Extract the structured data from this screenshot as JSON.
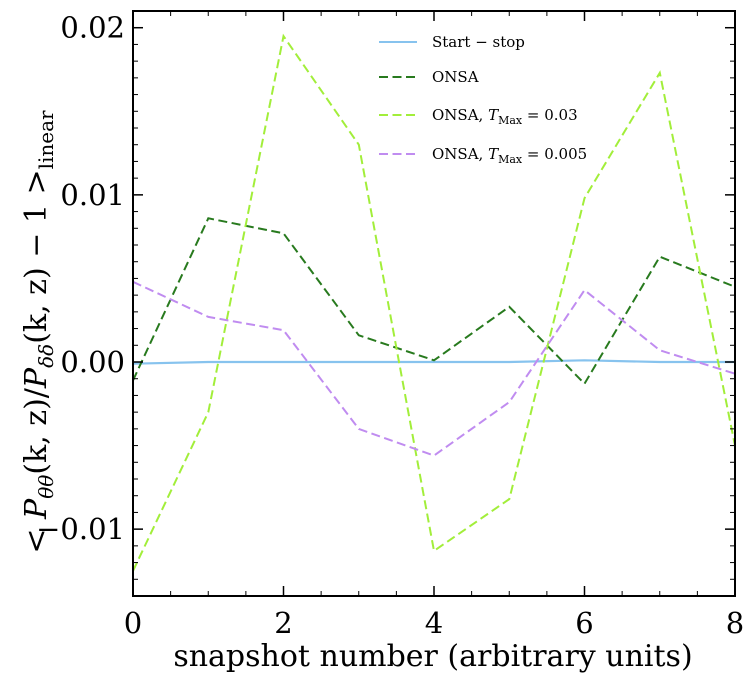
{
  "chart_data": {
    "type": "line",
    "title": "",
    "xlabel": "snapshot number (arbitrary units)",
    "ylabel": "< P_θθ(k,z)/P_δδ(k,z) − 1 >_linear",
    "ylabel_parts": {
      "open": "< ",
      "P1": "P",
      "sub1": "θθ",
      "mid1": "(k, z)/",
      "P2": "P",
      "sub2": "δδ",
      "mid2": "(k, z) − 1 >",
      "sub3": "linear"
    },
    "xlim": [
      0,
      8
    ],
    "ylim": [
      -0.014,
      0.021
    ],
    "xticks": [
      0,
      2,
      4,
      6,
      8
    ],
    "xtick_labels": [
      "0",
      "2",
      "4",
      "6",
      "8"
    ],
    "yticks": [
      -0.01,
      0.0,
      0.01,
      0.02
    ],
    "ytick_labels": [
      "−0.01",
      "0.00",
      "0.01",
      "0.02"
    ],
    "x": [
      0,
      1,
      2,
      3,
      4,
      5,
      6,
      7,
      8
    ],
    "series": [
      {
        "name": "Start − stop",
        "label_parts": {
          "main": "Start − stop"
        },
        "color": "#87c3ee",
        "dashed": false,
        "values": [
          -0.0001,
          0.0,
          0.0,
          0.0,
          0.0,
          0.0,
          0.0001,
          0.0,
          0.0
        ]
      },
      {
        "name": "ONSA",
        "label_parts": {
          "main": "ONSA"
        },
        "color": "#287a1e",
        "dashed": true,
        "values": [
          -0.0011,
          0.0086,
          0.0077,
          0.0016,
          0.0001,
          0.0033,
          -0.0013,
          0.0063,
          0.0045
        ]
      },
      {
        "name": "ONSA, T_Max = 0.03",
        "label_parts": {
          "pre": "ONSA, ",
          "T": "T",
          "sub": "Max",
          "post": " = 0.03"
        },
        "color": "#a2ee3a",
        "dashed": true,
        "values": [
          -0.0125,
          -0.003,
          0.0195,
          0.013,
          -0.0113,
          -0.0082,
          0.0098,
          0.0173,
          -0.005
        ]
      },
      {
        "name": "ONSA, T_Max = 0.005",
        "label_parts": {
          "pre": "ONSA, ",
          "T": "T",
          "sub": "Max",
          "post": " = 0.005"
        },
        "color": "#c08cf0",
        "dashed": true,
        "values": [
          0.0048,
          0.0027,
          0.0019,
          -0.004,
          -0.0056,
          -0.0024,
          0.0043,
          0.0007,
          -0.0007
        ]
      }
    ],
    "legend_position": "top-center"
  }
}
